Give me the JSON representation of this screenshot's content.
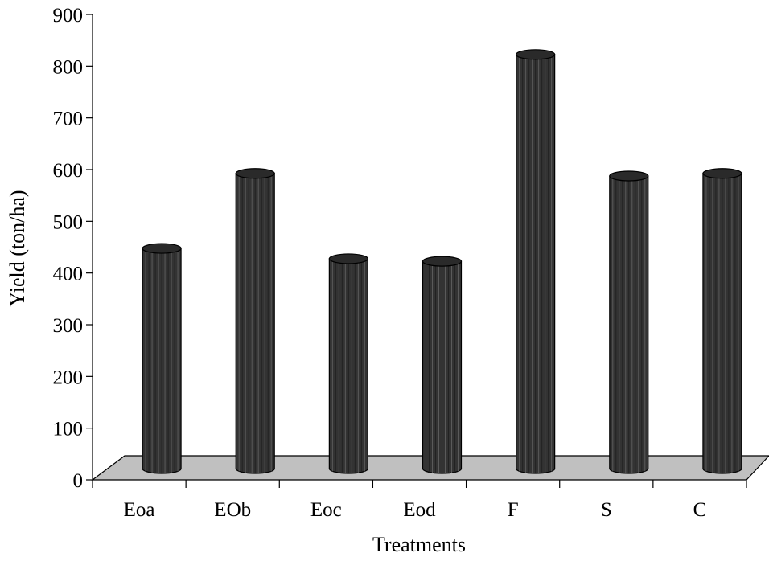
{
  "chart_data": {
    "type": "bar",
    "title": "",
    "xlabel": "Treatments",
    "ylabel": "Yield (ton/ha)",
    "categories": [
      "Eoa",
      "EOb",
      "Eoc",
      "Eod",
      "F",
      "S",
      "C"
    ],
    "values": [
      460,
      605,
      440,
      435,
      835,
      600,
      605
    ],
    "ylim": [
      0,
      900
    ],
    "yticks": [
      "0",
      "100",
      "200",
      "300",
      "400",
      "500",
      "600",
      "700",
      "800",
      "900"
    ],
    "grid": false,
    "legend": "none",
    "style": "3d-cylinder",
    "colors": {
      "bar": "#333333",
      "bar_top": "#2a2a2a",
      "floor": "#c0c0c0",
      "axis": "#000000"
    }
  }
}
